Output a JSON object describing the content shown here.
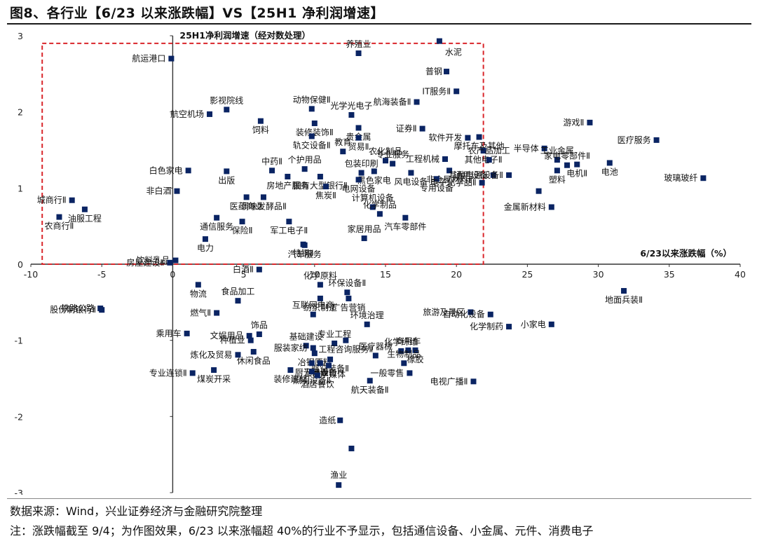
{
  "page": {
    "title": "图8、各行业【6/23 以来涨跌幅】VS【25H1 净利润增速】",
    "source": "数据来源：Wind，兴业证券经济与金融研究院整理",
    "note": "注：涨跌幅截至 9/4；为作图效果，6/23 以来涨幅超 40%的行业不予显示，包括通信设备、小金属、元件、消费电子"
  },
  "chart_data": {
    "type": "scatter",
    "xlabel": "6/23以来涨跌幅（%）",
    "ylabel": "25H1净利润增速（经对数处理）",
    "xlim": [
      -10,
      40
    ],
    "ylim": [
      -3,
      3
    ],
    "xticks": [
      "-10",
      "-5",
      "0",
      "5",
      "10",
      "15",
      "20",
      "25",
      "30",
      "35",
      "40"
    ],
    "yticks": [
      "-3",
      "-2",
      "-1",
      "0",
      "1",
      "2",
      "3"
    ],
    "grid": false,
    "legend": "none",
    "marker_color": "#0a2463",
    "highlight_color": "#d9262b",
    "highlight_box": {
      "x": [
        -9.2,
        21.9
      ],
      "y": [
        0,
        2.9
      ]
    },
    "points": [
      {
        "label": "水泥",
        "x": 18.8,
        "y": 2.93
      },
      {
        "label": "养殖业",
        "x": 13.1,
        "y": 2.77
      },
      {
        "label": "航运港口",
        "x": -0.1,
        "y": 2.7
      },
      {
        "label": "普钢",
        "x": 19.3,
        "y": 2.53
      },
      {
        "label": "IT服务Ⅱ",
        "x": 20.0,
        "y": 2.27
      },
      {
        "label": "航海装备Ⅱ",
        "x": 17.2,
        "y": 2.13
      },
      {
        "label": "动物保健Ⅱ",
        "x": 9.8,
        "y": 2.04
      },
      {
        "label": "影视院线",
        "x": 3.8,
        "y": 2.03
      },
      {
        "label": "航空机场",
        "x": 2.6,
        "y": 1.97
      },
      {
        "label": "饲料",
        "x": 6.2,
        "y": 1.88
      },
      {
        "label": "光学光电子",
        "x": 12.6,
        "y": 1.96
      },
      {
        "label": "装修装饰Ⅱ",
        "x": 10.0,
        "y": 1.85
      },
      {
        "label": "证券Ⅱ",
        "x": 17.6,
        "y": 1.78
      },
      {
        "label": "贵金属",
        "x": 13.1,
        "y": 1.79
      },
      {
        "label": "游戏Ⅱ",
        "x": 29.4,
        "y": 1.86
      },
      {
        "label": "摩托车及其他",
        "x": 21.6,
        "y": 1.67
      },
      {
        "label": "软件开发",
        "x": 20.8,
        "y": 1.66
      },
      {
        "label": "医疗服务",
        "x": 34.1,
        "y": 1.63
      },
      {
        "label": "轨交设备Ⅱ",
        "x": 9.8,
        "y": 1.68
      },
      {
        "label": "贸易Ⅱ",
        "x": 13.1,
        "y": 1.66
      },
      {
        "label": "其他电子Ⅱ",
        "x": 21.9,
        "y": 1.49
      },
      {
        "label": "半导体",
        "x": 26.2,
        "y": 1.52
      },
      {
        "label": "教育",
        "x": 12.0,
        "y": 1.48
      },
      {
        "label": "工程机械",
        "x": 19.2,
        "y": 1.38
      },
      {
        "label": "农化制品",
        "x": 15.0,
        "y": 1.36
      },
      {
        "label": "专业服务",
        "x": 15.5,
        "y": 1.32
      },
      {
        "label": "农产品加工",
        "x": 22.3,
        "y": 1.37
      },
      {
        "label": "工业金属",
        "x": 27.1,
        "y": 1.37
      },
      {
        "label": "电池",
        "x": 30.8,
        "y": 1.33
      },
      {
        "label": "电机Ⅱ",
        "x": 28.5,
        "y": 1.31
      },
      {
        "label": "家电零部件Ⅱ",
        "x": 27.8,
        "y": 1.3
      },
      {
        "label": "非金属材料Ⅱ",
        "x": 19.5,
        "y": 1.23
      },
      {
        "label": "玻璃玻纤",
        "x": 37.4,
        "y": 1.13
      },
      {
        "label": "白色家电",
        "x": 1.1,
        "y": 1.23
      },
      {
        "label": "中药Ⅱ",
        "x": 7.0,
        "y": 1.23
      },
      {
        "label": "个护用品",
        "x": 9.3,
        "y": 1.25
      },
      {
        "label": "出版",
        "x": 3.8,
        "y": 1.22
      },
      {
        "label": "包装印刷",
        "x": 13.3,
        "y": 1.2
      },
      {
        "label": "风电设备",
        "x": 16.8,
        "y": 1.2
      },
      {
        "label": "黑色家电",
        "x": 14.2,
        "y": 1.22
      },
      {
        "label": "房地产服务",
        "x": 8.1,
        "y": 1.15
      },
      {
        "label": "国有大型银行Ⅱ",
        "x": 10.4,
        "y": 1.15
      },
      {
        "label": "通用设备",
        "x": 22.6,
        "y": 1.17
      },
      {
        "label": "专用设备",
        "x": 18.6,
        "y": 1.12
      },
      {
        "label": "电网设备",
        "x": 13.1,
        "y": 1.11
      },
      {
        "label": "其他电源设备Ⅱ",
        "x": 23.7,
        "y": 1.17
      },
      {
        "label": "塑料",
        "x": 27.1,
        "y": 1.23
      },
      {
        "label": "焦炭Ⅱ",
        "x": 10.8,
        "y": 1.02
      },
      {
        "label": "非白酒",
        "x": 0.3,
        "y": 0.96
      },
      {
        "label": "电子化学品Ⅱ",
        "x": 21.8,
        "y": 1.07
      },
      {
        "label": "城商行Ⅱ",
        "x": -7.1,
        "y": 0.84
      },
      {
        "label": "医药商业",
        "x": 5.2,
        "y": 0.88
      },
      {
        "label": "调味发酵品Ⅱ",
        "x": 6.4,
        "y": 0.88
      },
      {
        "label": "油服工程",
        "x": -6.2,
        "y": 0.72
      },
      {
        "label": "计算机设备",
        "x": 14.1,
        "y": 0.75
      },
      {
        "label": "农商行Ⅱ",
        "x": -8.0,
        "y": 0.62
      },
      {
        "label": "化学制品",
        "x": 14.6,
        "y": 0.66
      },
      {
        "label": "通信服务",
        "x": 3.1,
        "y": 0.61
      },
      {
        "label": "保险Ⅱ",
        "x": 4.9,
        "y": 0.56
      },
      {
        "label": "军工电子Ⅱ",
        "x": 8.2,
        "y": 0.56
      },
      {
        "label": "汽车零部件",
        "x": 16.4,
        "y": 0.61
      },
      {
        "label": "金属新材料",
        "x": 26.7,
        "y": 0.75
      },
      {
        "label": "其他电子 (hidden)",
        "x": 25.8,
        "y": 0.96
      },
      {
        "label": "家居用品",
        "x": 13.5,
        "y": 0.34
      },
      {
        "label": "电力",
        "x": 2.3,
        "y": 0.33
      },
      {
        "label": "汽车服务",
        "x": 9.3,
        "y": 0.25
      },
      {
        "label": "饮料乳品",
        "x": 0.2,
        "y": 0.05
      },
      {
        "label": "房屋建设Ⅱ",
        "x": -0.2,
        "y": 0.02
      },
      {
        "label": "特钢Ⅱ",
        "x": 9.2,
        "y": 0.26
      },
      {
        "label": "白酒Ⅱ",
        "x": 6.1,
        "y": -0.07
      },
      {
        "label": "物流",
        "x": 1.8,
        "y": -0.27
      },
      {
        "label": "环保设备Ⅱ",
        "x": 12.3,
        "y": -0.37
      },
      {
        "label": "化学原料",
        "x": 10.4,
        "y": -0.27
      },
      {
        "label": "地面兵装Ⅱ",
        "x": 31.8,
        "y": -0.35
      },
      {
        "label": "食品加工",
        "x": 4.6,
        "y": -0.48
      },
      {
        "label": "纺织制造",
        "x": 10.4,
        "y": -0.45
      },
      {
        "label": "广告营销",
        "x": 12.4,
        "y": -0.45
      },
      {
        "label": "铁路公路",
        "x": -5.1,
        "y": -0.58
      },
      {
        "label": "股份制银行Ⅱ",
        "x": -5.0,
        "y": -0.6
      },
      {
        "label": "燃气Ⅱ",
        "x": 3.1,
        "y": -0.64
      },
      {
        "label": "互联网电商",
        "x": 9.9,
        "y": -0.66
      },
      {
        "label": "旅游及景区",
        "x": 21.0,
        "y": -0.63
      },
      {
        "label": "自动化设备",
        "x": 22.4,
        "y": -0.66
      },
      {
        "label": "乘用车",
        "x": 1.0,
        "y": -0.91
      },
      {
        "label": "文娱用品",
        "x": 5.4,
        "y": -0.94
      },
      {
        "label": "饰品",
        "x": 6.1,
        "y": -0.92
      },
      {
        "label": "环境治理",
        "x": 13.7,
        "y": -0.79
      },
      {
        "label": "化学制药",
        "x": 23.7,
        "y": -0.82
      },
      {
        "label": "小家电",
        "x": 26.7,
        "y": -0.79
      },
      {
        "label": "种植业",
        "x": 5.5,
        "y": -1.0
      },
      {
        "label": "基础建设",
        "x": 9.4,
        "y": -1.07
      },
      {
        "label": "专业工程",
        "x": 11.4,
        "y": -1.04
      },
      {
        "label": "工程咨询服务Ⅱ",
        "x": 12.2,
        "y": -1.0
      },
      {
        "label": "服装家纺",
        "x": 9.9,
        "y": -1.1
      },
      {
        "label": "化学纤维",
        "x": 16.1,
        "y": -1.14
      },
      {
        "label": "商用车",
        "x": 16.6,
        "y": -1.13
      },
      {
        "label": "橡胶",
        "x": 17.1,
        "y": -1.13
      },
      {
        "label": "休闲食品",
        "x": 5.7,
        "y": -1.15
      },
      {
        "label": "炼化及贸易",
        "x": 4.6,
        "y": -1.19
      },
      {
        "label": "冶钢原料",
        "x": 10.0,
        "y": -1.17
      },
      {
        "label": "航空装备Ⅱ",
        "x": 11.1,
        "y": -1.25
      },
      {
        "label": "医疗器械",
        "x": 14.3,
        "y": -1.2
      },
      {
        "label": "厨卫电器",
        "x": 9.8,
        "y": -1.3
      },
      {
        "label": "光伏设备",
        "x": 10.4,
        "y": -1.3
      },
      {
        "label": "生物制品",
        "x": 16.3,
        "y": -1.3
      },
      {
        "label": "数字媒体",
        "x": 11.0,
        "y": -1.33
      },
      {
        "label": "专业连锁Ⅱ",
        "x": 1.4,
        "y": -1.43
      },
      {
        "label": "煤炭开采",
        "x": 2.9,
        "y": -1.39
      },
      {
        "label": "装修建材",
        "x": 8.3,
        "y": -1.39
      },
      {
        "label": "照明设备Ⅱ",
        "x": 9.8,
        "y": -1.41
      },
      {
        "label": "一般零售",
        "x": 16.7,
        "y": -1.43
      },
      {
        "label": "电视广播Ⅱ",
        "x": 21.2,
        "y": -1.54
      },
      {
        "label": "酒店餐饮",
        "x": 10.2,
        "y": -1.46
      },
      {
        "label": "航天装备Ⅱ",
        "x": 13.9,
        "y": -1.53
      },
      {
        "label": "造纸",
        "x": 11.8,
        "y": -2.05
      },
      {
        "label": "(unlabeled)",
        "x": 12.6,
        "y": -2.42
      },
      {
        "label": "渔业",
        "x": 11.7,
        "y": -2.9
      }
    ]
  }
}
